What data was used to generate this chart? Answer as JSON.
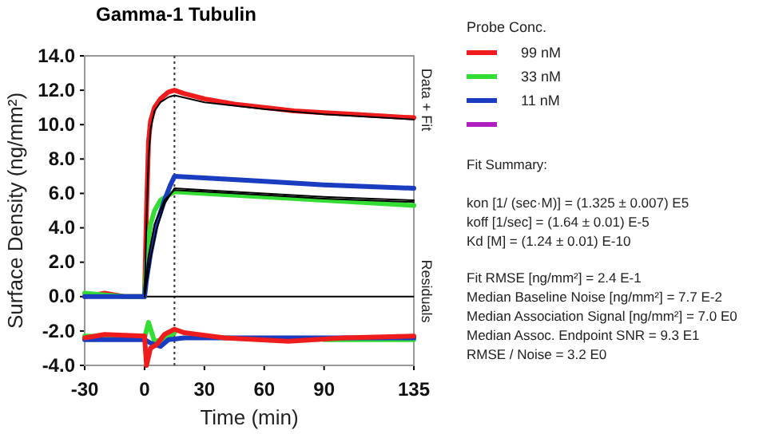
{
  "chart_data": {
    "type": "line",
    "title": "Gamma-1 Tubulin",
    "xlabel": "Time (min)",
    "ylabel": "Surface Density (ng/mm²)",
    "legend_title": "Probe Conc.",
    "xlim": [
      -30,
      135
    ],
    "ylim": [
      -4,
      14
    ],
    "xticks": [
      -30,
      0,
      30,
      60,
      90,
      135
    ],
    "yticks": [
      {
        "value": -4,
        "label": "-4.0"
      },
      {
        "value": -2,
        "label": "-2.0"
      },
      {
        "value": 0,
        "label": "0.0"
      },
      {
        "value": 2,
        "label": "2.0"
      },
      {
        "value": 4,
        "label": "4.0"
      },
      {
        "value": 6,
        "label": "6.0"
      },
      {
        "value": 8,
        "label": "8.0"
      },
      {
        "value": 10,
        "label": "10.0"
      },
      {
        "value": 12,
        "label": "12.0"
      },
      {
        "value": 14,
        "label": "14.0"
      }
    ],
    "grid": false,
    "legend": "right",
    "marker": "none",
    "line_style": "solid",
    "ref_lines": [
      {
        "axis": "x",
        "value": 15,
        "line_style": "dotted",
        "color": "#333333"
      },
      {
        "axis": "y",
        "value": 0,
        "color": "#000000"
      }
    ],
    "series": [
      {
        "name": "99 nM",
        "color": "#ee1c1c",
        "x": [
          -30,
          -25,
          -20,
          -15,
          -10,
          -5,
          0,
          1,
          2,
          3,
          5,
          8,
          12,
          15,
          20,
          30,
          45,
          60,
          75,
          90,
          105,
          120,
          135
        ],
        "values": [
          0.0,
          0.1,
          0.2,
          0.1,
          0.0,
          0.0,
          0.0,
          5.0,
          9.0,
          10.2,
          11.0,
          11.5,
          11.9,
          12.0,
          11.8,
          11.5,
          11.2,
          11.0,
          10.8,
          10.7,
          10.6,
          10.5,
          10.4
        ]
      },
      {
        "name": "33 nM",
        "color": "#33dd33",
        "x": [
          -30,
          -20,
          -10,
          0,
          1,
          2,
          3,
          5,
          8,
          12,
          15,
          30,
          60,
          90,
          135
        ],
        "values": [
          0.2,
          0.1,
          0.0,
          0.0,
          2.0,
          3.3,
          4.2,
          5.0,
          5.6,
          5.9,
          6.1,
          6.0,
          5.8,
          5.6,
          5.3
        ]
      },
      {
        "name": "11 nM",
        "color": "#1a3cc0",
        "x": [
          -30,
          -20,
          -10,
          0,
          1,
          3,
          6,
          10,
          13,
          15,
          30,
          60,
          90,
          135
        ],
        "values": [
          0.0,
          0.0,
          0.0,
          0.0,
          1.0,
          2.5,
          4.2,
          5.6,
          6.5,
          7.0,
          6.9,
          6.7,
          6.5,
          6.3
        ]
      },
      {
        "color": "#000000",
        "x": [
          0,
          1,
          2,
          3,
          5,
          8,
          12,
          15,
          30,
          60,
          90,
          135
        ],
        "values": [
          0.0,
          4.5,
          8.0,
          9.7,
          10.8,
          11.3,
          11.6,
          11.7,
          11.3,
          10.9,
          10.6,
          10.3
        ]
      },
      {
        "color": "#000000",
        "x": [
          0,
          2,
          5,
          10,
          15,
          30,
          60,
          90,
          135
        ],
        "values": [
          0.0,
          2.3,
          4.2,
          5.6,
          6.2,
          6.1,
          5.9,
          5.7,
          5.5
        ]
      },
      {
        "color": "#000000",
        "x": [
          0,
          3,
          6,
          10,
          15,
          30,
          60,
          90,
          135
        ],
        "values": [
          0.0,
          2.2,
          3.9,
          5.4,
          6.3,
          6.2,
          6.0,
          5.8,
          5.6
        ]
      },
      {
        "color": "#33dd33",
        "x": [
          -30,
          0,
          2,
          5,
          10,
          15,
          30,
          90,
          135
        ],
        "values": [
          -2.3,
          -2.4,
          -1.5,
          -2.6,
          -2.5,
          -2.1,
          null,
          -2.5,
          -2.5
        ]
      },
      {
        "color": "#1a3cc0",
        "x": [
          -30,
          0,
          3,
          8,
          12,
          20,
          60,
          135
        ],
        "values": [
          -2.5,
          -2.5,
          -2.7,
          -2.9,
          -2.5,
          -2.4,
          -2.4,
          -2.4
        ]
      },
      {
        "color": "#ee1c1c",
        "x": [
          -30,
          -20,
          0,
          1,
          3,
          6,
          10,
          15,
          20,
          40,
          72,
          100,
          135
        ],
        "values": [
          -2.4,
          -2.2,
          -2.3,
          -4.0,
          -3.0,
          -2.8,
          -2.2,
          -1.9,
          -2.1,
          -2.4,
          -2.6,
          -2.4,
          -2.3
        ]
      }
    ],
    "annotations": [
      "Data + Fit",
      "Residuals",
      "Fit Summary:",
      "kon  [1/ (sec·M)]  =   (1.325 ± 0.007) E5",
      "koff  [1/sec]  =   (1.64 ± 0.01) E-5",
      "Kd  [M]  =   (1.24 ± 0.01) E-10",
      "Fit RMSE [ng/mm²]  =   2.4 E-1",
      "Median Baseline Noise [ng/mm²]  =   7.7 E-2",
      "Median Association Signal [ng/mm²]  =   7.0 E0",
      "Median Assoc. Endpoint SNR  =   9.3 E1",
      "RMSE / Noise  =   3.2 E0"
    ]
  }
}
